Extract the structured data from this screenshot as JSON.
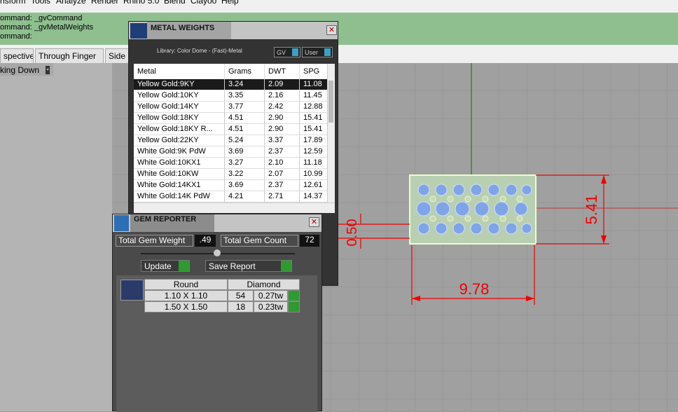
{
  "menu": [
    "nsform",
    "Tools",
    "Analyze",
    "Render",
    "Rhino 5.0",
    "Blend",
    "Clayoo",
    "Help"
  ],
  "command_history": [
    "ommand: _gvCommand",
    "ommand: _gvMetalWeights",
    "ommand:"
  ],
  "tabs": [
    "spective",
    "Through Finger",
    "Side"
  ],
  "viewport": {
    "title": "king Down",
    "dimensions": {
      "height": "5.41",
      "thickness": "0.50",
      "width": "9.78"
    }
  },
  "metal_weights": {
    "title": "METAL WEIGHTS",
    "library": "Library: Color Dome - (Fast)-Metal",
    "dropdowns": [
      "GV",
      "User"
    ],
    "columns": [
      "Metal",
      "Grams",
      "DWT",
      "SPG"
    ],
    "rows": [
      [
        "Yellow Gold:9KY",
        "3.24",
        "2.09",
        "11.08"
      ],
      [
        "Yellow Gold:10KY",
        "3.35",
        "2.16",
        "11.45"
      ],
      [
        "Yellow Gold:14KY",
        "3.77",
        "2.42",
        "12.88"
      ],
      [
        "Yellow Gold:18KY",
        "4.51",
        "2.90",
        "15.41"
      ],
      [
        "Yellow Gold:18KY R...",
        "4.51",
        "2.90",
        "15.41"
      ],
      [
        "Yellow Gold:22KY",
        "5.24",
        "3.37",
        "17.89"
      ],
      [
        "White Gold:9K PdW",
        "3.69",
        "2.37",
        "12.59"
      ],
      [
        "White Gold:10KX1",
        "3.27",
        "2.10",
        "11.18"
      ],
      [
        "White Gold:10KW",
        "3.22",
        "2.07",
        "10.99"
      ],
      [
        "White Gold:14KX1",
        "3.69",
        "2.37",
        "12.61"
      ],
      [
        "White Gold:14K PdW",
        "4.21",
        "2.71",
        "14.37"
      ]
    ]
  },
  "gem_reporter": {
    "title": "GEM REPORTER",
    "total_weight_label": "Total Gem Weight",
    "total_weight": ".49",
    "total_count_label": "Total Gem Count",
    "total_count": "72",
    "buttons": [
      "Update",
      "Save Report"
    ],
    "columns": [
      "Round",
      "Diamond"
    ],
    "rows": [
      [
        "1.10 X 1.10",
        "54",
        "0.27tw"
      ],
      [
        "1.50 X 1.50",
        "18",
        "0.23tw"
      ]
    ]
  }
}
